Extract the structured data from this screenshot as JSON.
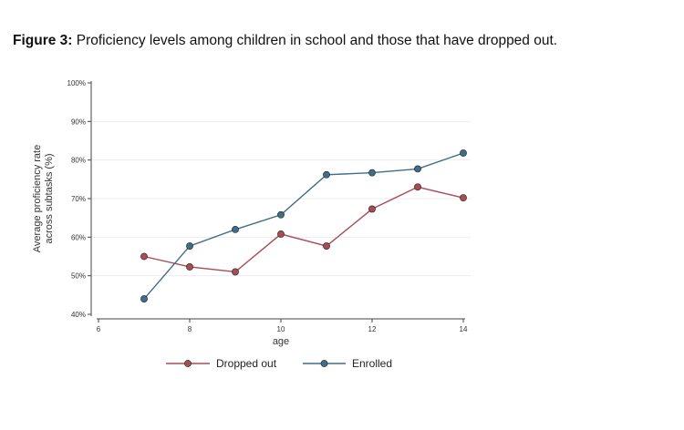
{
  "caption": {
    "prefix": "Figure 3:",
    "text": " Proficiency levels among children in school and those that have dropped out."
  },
  "chart_data": {
    "type": "line",
    "title": "Proficiency levels among children in school and those that have dropped out.",
    "xlabel": "age",
    "ylabel_line1": "Average proficiency rate",
    "ylabel_line2": "across subtasks (%)",
    "xlim": [
      6,
      14
    ],
    "ylim": [
      40,
      100
    ],
    "x_ticks": [
      6,
      8,
      10,
      12,
      14
    ],
    "y_ticks": [
      40,
      50,
      60,
      70,
      80,
      90,
      100
    ],
    "y_tick_suffix": "%",
    "grid": true,
    "legend_position": "bottom",
    "series": [
      {
        "name": "Dropped out",
        "color": "#a84d55",
        "x": [
          7,
          8,
          9,
          10,
          11,
          12,
          13,
          14
        ],
        "values": [
          55,
          52.3,
          51,
          60.8,
          57.7,
          67.3,
          73,
          70.2
        ]
      },
      {
        "name": "Enrolled",
        "color": "#3f6d8c",
        "x": [
          7,
          8,
          9,
          10,
          11,
          12,
          13,
          14
        ],
        "values": [
          44,
          57.7,
          62,
          65.8,
          76.2,
          76.7,
          77.7,
          81.8
        ]
      }
    ]
  }
}
